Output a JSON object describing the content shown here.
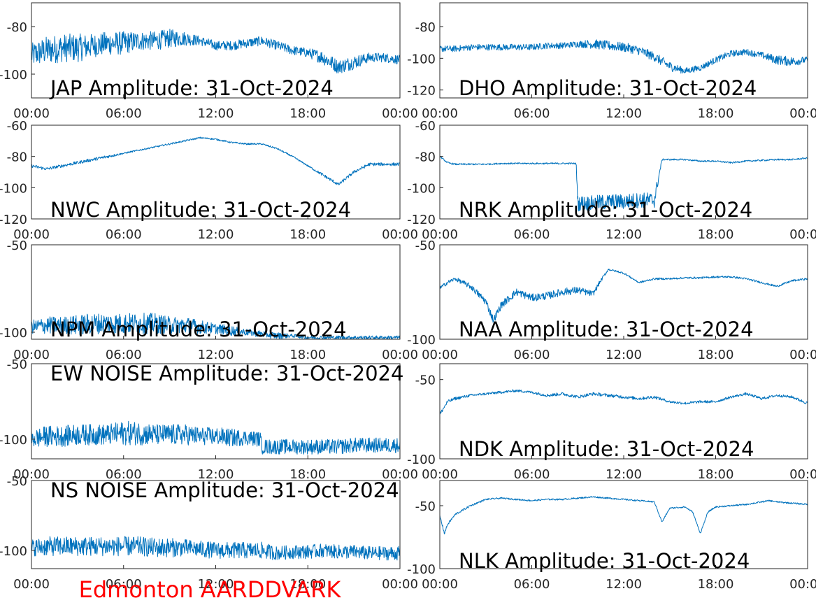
{
  "figure": {
    "station_label": "Edmonton AARDDVARK",
    "station_color": "#ff0000",
    "trace_color": "#0072bd"
  },
  "chart_data": [
    {
      "type": "line",
      "title": "JAP Amplitude: 31-Oct-2024",
      "x_ticks": [
        "00:00",
        "06:00",
        "12:00",
        "18:00",
        "00:00"
      ],
      "y_ticks": [
        "-80",
        "-100"
      ],
      "y_tick_values": [
        -80,
        -100
      ],
      "ylim": [
        -110,
        -70
      ],
      "series": [
        {
          "x_hours": [
            0,
            1,
            2,
            3,
            4,
            5,
            6,
            7,
            8,
            9,
            10,
            11,
            12,
            13,
            14,
            15,
            16,
            17,
            18,
            19,
            20,
            21,
            22,
            23,
            24
          ],
          "values": [
            -92,
            -90,
            -89,
            -89,
            -88,
            -87,
            -87,
            -86,
            -86,
            -85,
            -85,
            -86,
            -88,
            -88,
            -87,
            -86,
            -88,
            -90,
            -91,
            -93,
            -97,
            -95,
            -93,
            -93,
            -94
          ],
          "noise_db": [
            5,
            6,
            6,
            6,
            5,
            5,
            5,
            4,
            4,
            4,
            3,
            2,
            2,
            2,
            2,
            2,
            2,
            2,
            2,
            3,
            3,
            3,
            2,
            2,
            2
          ]
        }
      ]
    },
    {
      "type": "line",
      "title": "DHO Amplitude: 31-Oct-2024",
      "x_ticks": [
        "00:00",
        "06:00",
        "12:00",
        "18:00",
        "00:00"
      ],
      "y_ticks": [
        "-80",
        "-100",
        "-120"
      ],
      "y_tick_values": [
        -80,
        -100,
        -120
      ],
      "ylim": [
        -125,
        -65
      ],
      "series": [
        {
          "x_hours": [
            0,
            1,
            2,
            3,
            4,
            5,
            6,
            7,
            8,
            9,
            10,
            11,
            12,
            13,
            14,
            15,
            16,
            17,
            18,
            19,
            20,
            21,
            22,
            23,
            24
          ],
          "values": [
            -94,
            -94,
            -93,
            -93,
            -93,
            -93,
            -93,
            -92,
            -92,
            -91,
            -91,
            -92,
            -93,
            -95,
            -99,
            -105,
            -108,
            -106,
            -101,
            -97,
            -96,
            -98,
            -101,
            -102,
            -101
          ],
          "noise_db": [
            2,
            2,
            2,
            2,
            2,
            2,
            2,
            2,
            2,
            2,
            3,
            3,
            3,
            3,
            3,
            3,
            2,
            2,
            2,
            2,
            2,
            2,
            3,
            3,
            2
          ]
        }
      ]
    },
    {
      "type": "line",
      "title": "NWC Amplitude: 31-Oct-2024",
      "x_ticks": [
        "00:00",
        "06:00",
        "12:00",
        "18:00",
        "00:00"
      ],
      "y_ticks": [
        "-60",
        "-80",
        "-100",
        "-120"
      ],
      "y_tick_values": [
        -60,
        -80,
        -100,
        -120
      ],
      "ylim": [
        -120,
        -60
      ],
      "series": [
        {
          "x_hours": [
            0,
            1,
            2,
            3,
            4,
            5,
            6,
            7,
            8,
            9,
            10,
            11,
            12,
            13,
            14,
            15,
            16,
            17,
            18,
            19,
            20,
            21,
            22,
            23,
            24
          ],
          "values": [
            -86,
            -88,
            -86,
            -84,
            -82,
            -80,
            -78,
            -76,
            -74,
            -72,
            -70,
            -68,
            -69,
            -71,
            -72,
            -72,
            -75,
            -80,
            -86,
            -92,
            -98,
            -90,
            -85,
            -85,
            -85
          ],
          "noise_db": [
            1,
            1,
            1,
            1,
            1,
            1,
            0.5,
            0.5,
            0.5,
            0.5,
            0.5,
            0.5,
            0.5,
            0.5,
            0.5,
            0.5,
            0.5,
            0.5,
            0.5,
            1,
            1,
            1,
            1,
            1,
            1
          ]
        }
      ]
    },
    {
      "type": "line",
      "title": "NRK Amplitude: 31-Oct-2024",
      "x_ticks": [
        "00:00",
        "06:00",
        "12:00",
        "18:00",
        "00:00"
      ],
      "y_ticks": [
        "-60",
        "-80",
        "-100",
        "-120"
      ],
      "y_tick_values": [
        -60,
        -80,
        -100,
        -120
      ],
      "ylim": [
        -120,
        -60
      ],
      "series": [
        {
          "x_hours": [
            0,
            0.5,
            1,
            2,
            3,
            4,
            5,
            6,
            7,
            8,
            8.9,
            9,
            10,
            11,
            12,
            13,
            14,
            14.5,
            15,
            16,
            17,
            18,
            19,
            20,
            21,
            22,
            23,
            24
          ],
          "values": [
            -80,
            -84,
            -85,
            -85,
            -85,
            -84.5,
            -84.5,
            -84.5,
            -84.5,
            -84.5,
            -84.5,
            -110,
            -110,
            -109,
            -109,
            -108,
            -108,
            -82,
            -82,
            -82,
            -83,
            -83,
            -84,
            -83,
            -82.5,
            -82,
            -82,
            -81
          ],
          "noise_db": [
            0.5,
            0.5,
            0.5,
            0.5,
            0.5,
            0.5,
            0.5,
            0.5,
            0.5,
            0.5,
            0.5,
            5,
            5,
            5,
            5,
            5,
            5,
            0.5,
            0.5,
            0.5,
            0.5,
            0.5,
            0.5,
            0.5,
            0.5,
            0.5,
            0.5,
            0.5
          ]
        }
      ]
    },
    {
      "type": "line",
      "title": "NPM Amplitude: 31-Oct-2024",
      "x_ticks": [
        "00:00",
        "06:00",
        "12:00",
        "18:00",
        "00:00"
      ],
      "y_ticks": [
        "-50",
        "-100"
      ],
      "y_tick_values": [
        -50,
        -100
      ],
      "ylim": [
        -104,
        -50
      ],
      "series": [
        {
          "x_hours": [
            0,
            1,
            2,
            3,
            4,
            5,
            6,
            7,
            8,
            9,
            10,
            11,
            12,
            13,
            14,
            15,
            16,
            17,
            18,
            19,
            20,
            21,
            22,
            23,
            24
          ],
          "values": [
            -97,
            -96,
            -96,
            -96,
            -95,
            -95,
            -95,
            -95,
            -95,
            -96,
            -96,
            -97,
            -98,
            -99,
            -100,
            -101,
            -102,
            -102,
            -103,
            -103,
            -103,
            -103,
            -103,
            -103,
            -103
          ],
          "noise_db": [
            4,
            5,
            5,
            6,
            6,
            6,
            6,
            6,
            6,
            5,
            5,
            4,
            3,
            3,
            2,
            2,
            2,
            1,
            1,
            1,
            1,
            1,
            1,
            1,
            1
          ]
        }
      ]
    },
    {
      "type": "line",
      "title": "NAA Amplitude: 31-Oct-2024",
      "x_ticks": [
        "00:00",
        "06:00",
        "12:00",
        "18:00",
        "00:00"
      ],
      "y_ticks": [
        "-50",
        "-100"
      ],
      "y_tick_values": [
        -50,
        -100
      ],
      "ylim": [
        -100,
        -50
      ],
      "series": [
        {
          "x_hours": [
            0,
            0.5,
            1,
            2,
            3,
            3.5,
            4,
            5,
            6,
            7,
            8,
            9,
            10,
            10.5,
            11,
            12,
            13,
            14,
            15,
            16,
            17,
            18,
            19,
            20,
            21,
            22,
            23,
            24
          ],
          "values": [
            -73,
            -70,
            -68,
            -72,
            -80,
            -90,
            -82,
            -75,
            -78,
            -77,
            -75,
            -74,
            -76,
            -69,
            -63,
            -65,
            -70,
            -68,
            -68,
            -67.5,
            -67.5,
            -67,
            -67,
            -68,
            -70,
            -72,
            -69,
            -68
          ],
          "noise_db": [
            1,
            1,
            1,
            1.5,
            2,
            2,
            2,
            2,
            2,
            2,
            2,
            2,
            1.5,
            1,
            0.5,
            0.5,
            0.5,
            0.5,
            0.5,
            0.5,
            0.5,
            0.5,
            0.5,
            0.5,
            0.5,
            0.5,
            0.5,
            0.5
          ]
        }
      ]
    },
    {
      "type": "line",
      "title": "EW NOISE Amplitude: 31-Oct-2024",
      "x_ticks": [
        "00:00",
        "06:00",
        "12:00",
        "18:00",
        "00:00"
      ],
      "y_ticks": [
        "-50",
        "-100"
      ],
      "y_tick_values": [
        -50,
        -100
      ],
      "ylim": [
        -113,
        -50
      ],
      "series": [
        {
          "x_hours": [
            0,
            1,
            2,
            3,
            4,
            5,
            6,
            7,
            8,
            9,
            10,
            11,
            12,
            13,
            14,
            14.9,
            15,
            16,
            17,
            18,
            19,
            20,
            21,
            22,
            23,
            24
          ],
          "values": [
            -100,
            -98,
            -98,
            -97,
            -97,
            -97,
            -96,
            -96,
            -97,
            -97,
            -97,
            -98,
            -98,
            -99,
            -99,
            -100,
            -105,
            -105,
            -105,
            -105,
            -105,
            -105,
            -104,
            -104,
            -104,
            -104
          ],
          "noise_db": [
            6,
            7,
            7,
            7,
            7,
            7,
            8,
            8,
            7,
            7,
            7,
            6,
            6,
            6,
            5,
            5,
            5,
            5,
            5,
            5,
            5,
            5,
            5,
            5,
            5,
            5
          ]
        }
      ]
    },
    {
      "type": "line",
      "title": "NDK Amplitude: 31-Oct-2024",
      "x_ticks": [
        "00:00",
        "06:00",
        "12:00",
        "18:00",
        "00:00"
      ],
      "y_ticks": [
        "-50",
        "-100"
      ],
      "y_tick_values": [
        -50,
        -100
      ],
      "ylim": [
        -100,
        -40
      ],
      "series": [
        {
          "x_hours": [
            0,
            0.5,
            1,
            2,
            3,
            4,
            5,
            6,
            7,
            8,
            9,
            10,
            11,
            12,
            13,
            14,
            15,
            16,
            17,
            18,
            19,
            20,
            21,
            22,
            23,
            24
          ],
          "values": [
            -72,
            -64,
            -62,
            -60,
            -59,
            -58,
            -57,
            -58,
            -60,
            -59,
            -61,
            -59,
            -60,
            -61,
            -62,
            -61,
            -64,
            -65,
            -64,
            -64,
            -61,
            -59,
            -62,
            -60,
            -61,
            -65
          ],
          "noise_db": [
            1,
            1,
            1,
            0.8,
            0.8,
            0.8,
            0.8,
            0.8,
            1,
            1,
            1,
            1,
            1,
            1,
            1,
            1,
            0.8,
            0.8,
            0.8,
            0.8,
            0.8,
            0.8,
            0.8,
            0.8,
            0.8,
            1
          ]
        }
      ]
    },
    {
      "type": "line",
      "title": "NS NOISE Amplitude: 31-Oct-2024",
      "x_ticks": [
        "00:00",
        "06:00",
        "12:00",
        "18:00",
        "00:00"
      ],
      "y_ticks": [
        "-50",
        "-100"
      ],
      "y_tick_values": [
        -50,
        -100
      ],
      "ylim": [
        -113,
        -50
      ],
      "series": [
        {
          "x_hours": [
            0,
            1,
            2,
            3,
            4,
            5,
            6,
            7,
            8,
            9,
            10,
            11,
            12,
            13,
            14,
            15,
            16,
            17,
            18,
            19,
            20,
            21,
            22,
            23,
            24
          ],
          "values": [
            -98,
            -97,
            -97,
            -97,
            -97,
            -97,
            -97,
            -97,
            -98,
            -98,
            -98,
            -99,
            -100,
            -100,
            -100,
            -100,
            -102,
            -101,
            -101,
            -100,
            -101,
            -101,
            -102,
            -102,
            -102
          ],
          "noise_db": [
            6,
            7,
            7,
            7,
            7,
            7,
            7,
            7,
            7,
            7,
            6,
            6,
            6,
            6,
            6,
            6,
            5,
            5,
            5,
            5,
            5,
            5,
            5,
            5,
            5
          ]
        }
      ]
    },
    {
      "type": "line",
      "title": "NLK Amplitude: 31-Oct-2024",
      "x_ticks": [
        "00:00",
        "06:00",
        "12:00",
        "18:00",
        "00:00"
      ],
      "y_ticks": [
        "-50",
        "-100"
      ],
      "y_tick_values": [
        -50,
        -100
      ],
      "ylim": [
        -100,
        -30
      ],
      "series": [
        {
          "x_hours": [
            0,
            0.3,
            0.5,
            1,
            2,
            3,
            4,
            5,
            6,
            7,
            8,
            9,
            10,
            11,
            12,
            13,
            14,
            14.5,
            15,
            16,
            16.5,
            17,
            17.5,
            18,
            19,
            20,
            21,
            21.5,
            22,
            23,
            24
          ],
          "values": [
            -58,
            -72,
            -65,
            -57,
            -50,
            -45,
            -44,
            -45,
            -46,
            -45,
            -45,
            -44,
            -43,
            -44,
            -45,
            -46,
            -47,
            -63,
            -52,
            -51,
            -55,
            -72,
            -55,
            -51,
            -50,
            -49,
            -47,
            -46,
            -47,
            -48,
            -49
          ],
          "noise_db": [
            1,
            1,
            1,
            0.8,
            0.8,
            0.6,
            0.6,
            0.6,
            0.6,
            0.6,
            0.6,
            0.6,
            0.6,
            0.6,
            0.6,
            0.6,
            0.6,
            0.6,
            0.6,
            0.6,
            0.6,
            0.6,
            0.6,
            0.6,
            0.6,
            0.6,
            0.6,
            0.6,
            0.6,
            0.6,
            0.6
          ]
        }
      ]
    }
  ]
}
